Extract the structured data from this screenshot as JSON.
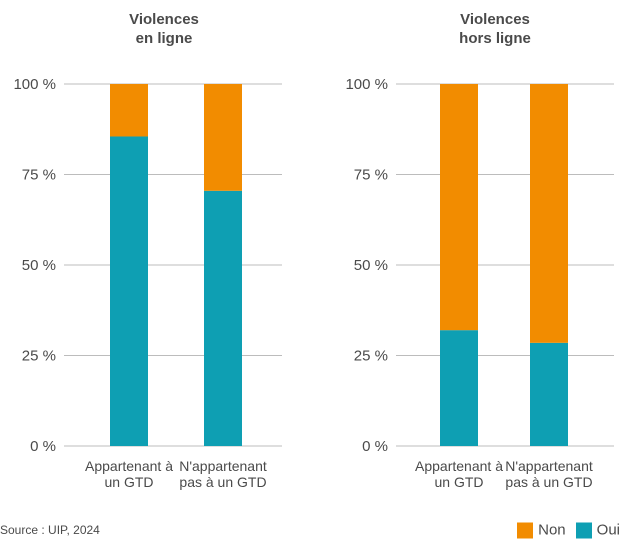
{
  "chart_data": [
    {
      "type": "bar",
      "stacked": true,
      "title": [
        "Violences",
        "en ligne"
      ],
      "categories": [
        [
          "Appartenant à",
          "un GTD"
        ],
        [
          "N'appartenant",
          "pas à un GTD"
        ]
      ],
      "series": [
        {
          "name": "Oui",
          "color": "#0e9fb3",
          "values": [
            85.5,
            70.5
          ]
        },
        {
          "name": "Non",
          "color": "#f28c00",
          "values": [
            14.5,
            29.5
          ]
        }
      ],
      "yticks": [
        "0 %",
        "25 %",
        "50 %",
        "75 %",
        "100 %"
      ],
      "ylim": [
        0,
        100
      ],
      "grid": true
    },
    {
      "type": "bar",
      "stacked": true,
      "title": [
        "Violences",
        "hors ligne"
      ],
      "categories": [
        [
          "Appartenant à",
          "un GTD"
        ],
        [
          "N'appartenant",
          "pas à un GTD"
        ]
      ],
      "series": [
        {
          "name": "Oui",
          "color": "#0e9fb3",
          "values": [
            32,
            28.5
          ]
        },
        {
          "name": "Non",
          "color": "#f28c00",
          "values": [
            68,
            71.5
          ]
        }
      ],
      "yticks": [
        "0 %",
        "25 %",
        "50 %",
        "75 %",
        "100 %"
      ],
      "ylim": [
        0,
        100
      ],
      "grid": true
    }
  ],
  "source": "Source : UIP, 2024",
  "legend": [
    {
      "label": "Non",
      "color": "#f28c00"
    },
    {
      "label": "Oui",
      "color": "#0e9fb3"
    }
  ]
}
